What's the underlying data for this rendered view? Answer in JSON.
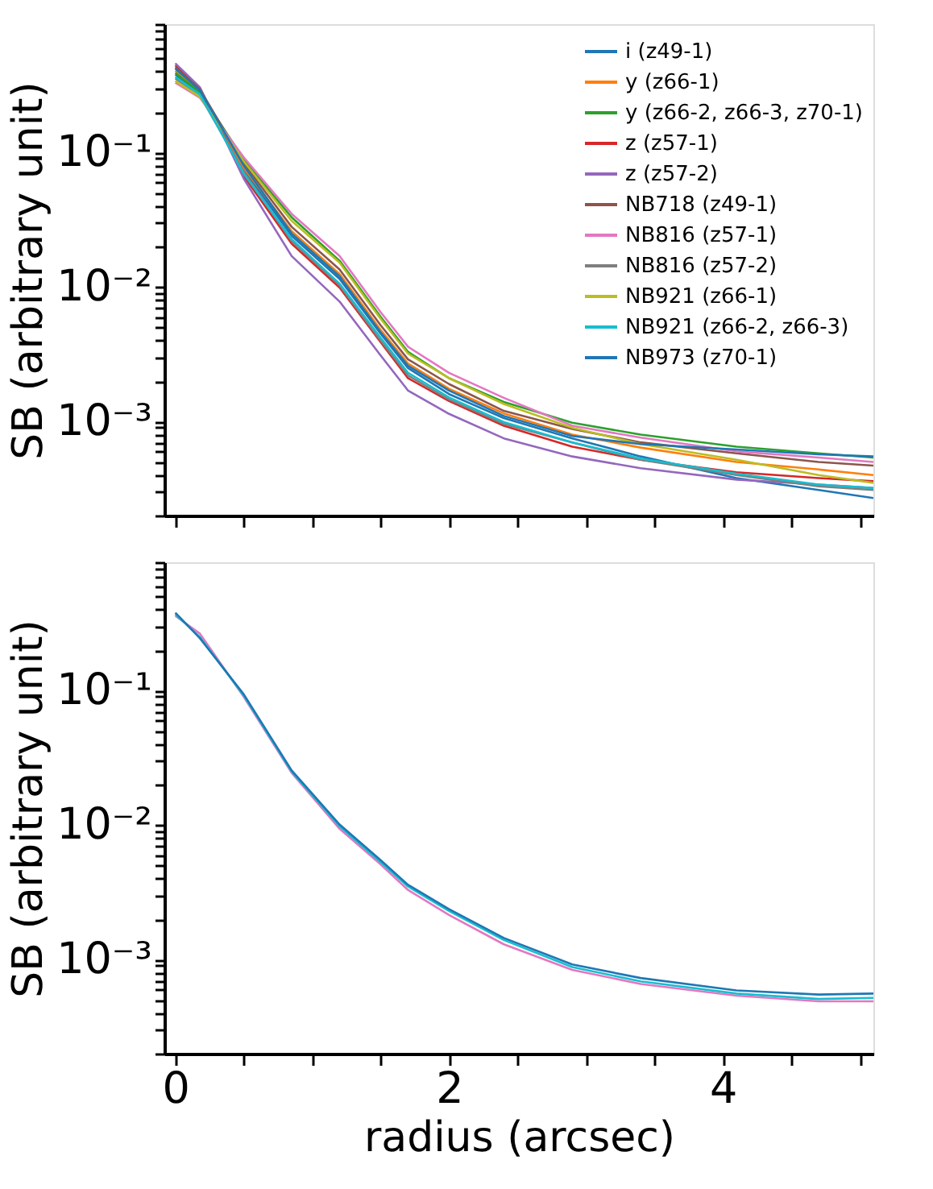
{
  "chart_data": [
    {
      "type": "line",
      "ylabel": "SB (arbitrary unit)",
      "x": [
        0,
        0.18,
        0.5,
        0.85,
        1.2,
        1.5,
        1.7,
        2.0,
        2.4,
        2.9,
        3.4,
        4.1,
        4.7,
        5.1
      ],
      "series": [
        {
          "name": "i (z49-1)",
          "color": "#1f77b4",
          "values": [
            0.38,
            0.275,
            0.0745,
            0.024,
            0.0115,
            0.0045,
            0.0025,
            0.0016,
            0.00106,
            0.00075,
            0.00055,
            0.00038,
            0.00031,
            0.00027
          ]
        },
        {
          "name": "y (z66-1)",
          "color": "#ff7f0e",
          "values": [
            0.405,
            0.285,
            0.077,
            0.026,
            0.0125,
            0.0048,
            0.0027,
            0.00175,
            0.00115,
            0.0008,
            0.00064,
            0.0005,
            0.00044,
            0.0004
          ]
        },
        {
          "name": "y (z66-2, z66-3, z70-1)",
          "color": "#2ca02c",
          "values": [
            0.39,
            0.28,
            0.089,
            0.033,
            0.0157,
            0.006,
            0.0033,
            0.0021,
            0.0014,
            0.00098,
            0.0008,
            0.00065,
            0.00058,
            0.00054
          ]
        },
        {
          "name": "z (z57-1)",
          "color": "#d62728",
          "values": [
            0.445,
            0.3,
            0.067,
            0.021,
            0.0099,
            0.0039,
            0.0021,
            0.00142,
            0.00093,
            0.00065,
            0.00052,
            0.00042,
            0.00038,
            0.00036
          ]
        },
        {
          "name": "z (z57-2)",
          "color": "#9467bd",
          "values": [
            0.46,
            0.305,
            0.064,
            0.017,
            0.0078,
            0.0031,
            0.0017,
            0.00114,
            0.00075,
            0.00055,
            0.00045,
            0.00037,
            0.00034,
            0.00032
          ]
        },
        {
          "name": "NB718 (z49-1)",
          "color": "#8c564b",
          "values": [
            0.43,
            0.295,
            0.083,
            0.028,
            0.0135,
            0.0052,
            0.0029,
            0.0019,
            0.0012,
            0.00088,
            0.0007,
            0.00058,
            0.0005,
            0.00047
          ]
        },
        {
          "name": "NB816 (z57-1)",
          "color": "#e377c2",
          "values": [
            0.33,
            0.255,
            0.092,
            0.035,
            0.017,
            0.0065,
            0.0036,
            0.0023,
            0.0015,
            0.00093,
            0.00076,
            0.0006,
            0.00054,
            0.0005
          ]
        },
        {
          "name": "NB816 (z57-2)",
          "color": "#7f7f7f",
          "values": [
            0.355,
            0.265,
            0.072,
            0.022,
            0.0103,
            0.004,
            0.0022,
            0.00146,
            0.00096,
            0.0007,
            0.00052,
            0.0004,
            0.00033,
            0.00031
          ]
        },
        {
          "name": "NB921 (z66-1)",
          "color": "#bcbd22",
          "values": [
            0.34,
            0.26,
            0.086,
            0.031,
            0.0152,
            0.0058,
            0.0032,
            0.0021,
            0.00135,
            0.0009,
            0.00068,
            0.00052,
            0.0004,
            0.00035
          ]
        },
        {
          "name": "NB921 (z66-2, z66-3)",
          "color": "#17becf",
          "values": [
            0.365,
            0.27,
            0.0695,
            0.0227,
            0.0106,
            0.0042,
            0.0023,
            0.00151,
            0.00099,
            0.0007,
            0.00053,
            0.00041,
            0.00034,
            0.00032
          ]
        },
        {
          "name": "NB973 (z70-1)",
          "color": "#1f77b4",
          "values": [
            0.42,
            0.29,
            0.08,
            0.025,
            0.012,
            0.0046,
            0.0026,
            0.0017,
            0.0011,
            0.00078,
            0.00068,
            0.00062,
            0.00057,
            0.00055
          ]
        }
      ],
      "xlim": [
        -0.08,
        5.1
      ],
      "xticks": [
        0,
        {
          "value": 0.5,
          "label": null
        },
        {
          "value": 1,
          "label": null
        },
        {
          "value": 1.5,
          "label": null
        },
        2,
        {
          "value": 2.5,
          "label": null
        },
        {
          "value": 3,
          "label": null
        },
        {
          "value": 3.5,
          "label": null
        },
        4,
        {
          "value": 4.5,
          "label": null
        },
        {
          "value": 5,
          "label": null
        }
      ],
      "ylim": [
        0.0002,
        0.9
      ],
      "yticks": [
        {
          "value": 0.0002,
          "label": null
        },
        {
          "value": 0.0003,
          "label": null
        },
        {
          "value": 0.0004,
          "label": null
        },
        {
          "value": 0.0005,
          "label": null
        },
        {
          "value": 0.0006,
          "label": null
        },
        {
          "value": 0.0007,
          "label": null
        },
        {
          "value": 0.0008,
          "label": null
        },
        {
          "value": 0.0009,
          "label": null
        },
        {
          "value": 0.001,
          "label": "10⁻³"
        },
        {
          "value": 0.002,
          "label": null
        },
        {
          "value": 0.003,
          "label": null
        },
        {
          "value": 0.004,
          "label": null
        },
        {
          "value": 0.005,
          "label": null
        },
        {
          "value": 0.006,
          "label": null
        },
        {
          "value": 0.007,
          "label": null
        },
        {
          "value": 0.008,
          "label": null
        },
        {
          "value": 0.009,
          "label": null
        },
        {
          "value": 0.01,
          "label": "10⁻²"
        },
        {
          "value": 0.02,
          "label": null
        },
        {
          "value": 0.03,
          "label": null
        },
        {
          "value": 0.04,
          "label": null
        },
        {
          "value": 0.05,
          "label": null
        },
        {
          "value": 0.06,
          "label": null
        },
        {
          "value": 0.07,
          "label": null
        },
        {
          "value": 0.08,
          "label": null
        },
        {
          "value": 0.09,
          "label": null
        },
        {
          "value": 0.1,
          "label": "10⁻¹"
        },
        {
          "value": 0.2,
          "label": null
        },
        {
          "value": 0.3,
          "label": null
        },
        {
          "value": 0.4,
          "label": null
        },
        {
          "value": 0.5,
          "label": null
        },
        {
          "value": 0.6,
          "label": null
        },
        {
          "value": 0.7,
          "label": null
        },
        {
          "value": 0.8,
          "label": null
        },
        {
          "value": 0.9,
          "label": null
        }
      ],
      "log": "y",
      "grid": false,
      "legend": "top right",
      "tick_labels": "y"
    },
    {
      "type": "line",
      "xlabel": "radius (arcsec)",
      "ylabel": "SB (arbitrary unit)",
      "x": [
        0,
        0.18,
        0.5,
        0.85,
        1.2,
        1.5,
        1.7,
        2.0,
        2.4,
        2.9,
        3.4,
        4.1,
        4.7,
        5.1
      ],
      "series": [
        {
          "color": "#e377c2",
          "values": [
            0.36,
            0.265,
            0.09,
            0.0245,
            0.0094,
            0.0051,
            0.0033,
            0.00215,
            0.0013,
            0.00084,
            0.00066,
            0.00054,
            0.00049,
            0.00049
          ]
        },
        {
          "color": "#17becf",
          "values": [
            0.37,
            0.25,
            0.092,
            0.025,
            0.0098,
            0.0053,
            0.0035,
            0.0023,
            0.0014,
            0.00088,
            0.00069,
            0.00056,
            0.00051,
            0.00052
          ]
        },
        {
          "color": "#1f77b4",
          "values": [
            0.38,
            0.245,
            0.094,
            0.0255,
            0.0101,
            0.0055,
            0.0036,
            0.00237,
            0.00145,
            0.00092,
            0.00073,
            0.00059,
            0.00055,
            0.00056
          ]
        }
      ],
      "xlim": [
        -0.08,
        5.1
      ],
      "xticks": [
        0,
        {
          "value": 0.5,
          "label": null
        },
        {
          "value": 1,
          "label": null
        },
        {
          "value": 1.5,
          "label": null
        },
        2,
        {
          "value": 2.5,
          "label": null
        },
        {
          "value": 3,
          "label": null
        },
        {
          "value": 3.5,
          "label": null
        },
        4,
        {
          "value": 4.5,
          "label": null
        },
        {
          "value": 5,
          "label": null
        }
      ],
      "ylim": [
        0.0002,
        0.9
      ],
      "yticks": [
        {
          "value": 0.0002,
          "label": null
        },
        {
          "value": 0.0003,
          "label": null
        },
        {
          "value": 0.0004,
          "label": null
        },
        {
          "value": 0.0005,
          "label": null
        },
        {
          "value": 0.0006,
          "label": null
        },
        {
          "value": 0.0007,
          "label": null
        },
        {
          "value": 0.0008,
          "label": null
        },
        {
          "value": 0.0009,
          "label": null
        },
        {
          "value": 0.001,
          "label": "10⁻³"
        },
        {
          "value": 0.002,
          "label": null
        },
        {
          "value": 0.003,
          "label": null
        },
        {
          "value": 0.004,
          "label": null
        },
        {
          "value": 0.005,
          "label": null
        },
        {
          "value": 0.006,
          "label": null
        },
        {
          "value": 0.007,
          "label": null
        },
        {
          "value": 0.008,
          "label": null
        },
        {
          "value": 0.009,
          "label": null
        },
        {
          "value": 0.01,
          "label": "10⁻²"
        },
        {
          "value": 0.02,
          "label": null
        },
        {
          "value": 0.03,
          "label": null
        },
        {
          "value": 0.04,
          "label": null
        },
        {
          "value": 0.05,
          "label": null
        },
        {
          "value": 0.06,
          "label": null
        },
        {
          "value": 0.07,
          "label": null
        },
        {
          "value": 0.08,
          "label": null
        },
        {
          "value": 0.09,
          "label": null
        },
        {
          "value": 0.1,
          "label": "10⁻¹"
        },
        {
          "value": 0.2,
          "label": null
        },
        {
          "value": 0.3,
          "label": null
        },
        {
          "value": 0.4,
          "label": null
        },
        {
          "value": 0.5,
          "label": null
        },
        {
          "value": 0.6,
          "label": null
        },
        {
          "value": 0.7,
          "label": null
        },
        {
          "value": 0.8,
          "label": null
        },
        {
          "value": 0.9,
          "label": null
        }
      ],
      "log": "y",
      "grid": false
    }
  ]
}
